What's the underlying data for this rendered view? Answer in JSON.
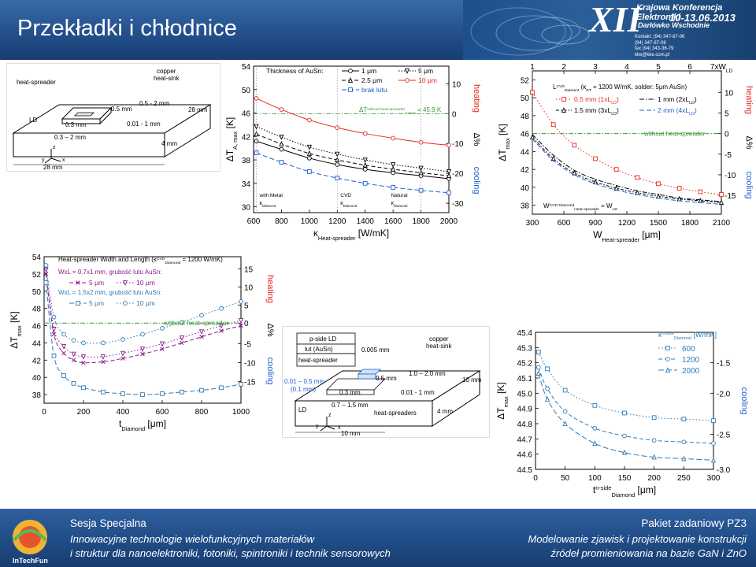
{
  "slide": {
    "title": "Przekładki i chłodnice"
  },
  "banner": {
    "roman": "XII",
    "conference": "Krajowa Konferencja Elektroniki",
    "date": "10-13.06.2013",
    "place": "Darłówko Wschodnie",
    "contact": "Kontakt: (94) 347-87-06\n(94) 347-87-08\nfax (94) 343-36-79\nkke@kke.com.pl"
  },
  "footer": {
    "left_line1": "Sesja Specjalna",
    "left_line2": "Innowacyjne technologie wielofunkcyjnych materiałów",
    "left_line3": "i struktur dla nanoelektroniki, fotoniki, spintroniki i technik sensorowych",
    "right_line1": "Pakiet zadaniowy  PZ3",
    "right_line2": "Modelowanie zjawisk i projektowanie konstrukcji",
    "right_line3": "źródeł promieniowania na bazie GaN i ZnO",
    "logo_text": "InTechFun"
  },
  "colors": {
    "black": "#000000",
    "red": "#e8281e",
    "blue": "#1f5fd0",
    "purple": "#8a1a8a",
    "teal": "#2a7ab8",
    "green": "#3a9a3a",
    "header": "#23508c"
  },
  "diagram1": {
    "labels": [
      "heat-spreader",
      "copper",
      "heat-sink",
      "LD",
      "0.5 mm",
      "0.5 - 2 mm",
      "28 mm",
      "0.3 mm",
      "0.01 - 1 mm",
      "0.3 – 2 mm",
      "4 mm",
      "28 mm",
      "x",
      "y",
      "z"
    ]
  },
  "diagram2": {
    "labels": [
      "p-side LD",
      "lut (AuSn)",
      "heat-spreader",
      "0.005 mm",
      "copper",
      "heat-sink",
      "0.01 – 0.5 mm",
      "(0.1 mm)",
      "0.3 mm",
      "0.5 mm",
      "1.0 – 2.0 mm",
      "0.01 - 1 mm",
      "10 mm",
      "LD",
      "0.7 – 1.5 mm",
      "heat-spreaders",
      "4 mm",
      "10 mm",
      "x",
      "y",
      "z"
    ]
  },
  "chart_data": [
    {
      "id": "chart1",
      "type": "line",
      "xlabel_main": "κ",
      "xlabel_sub": "Heat-spreader",
      "xlabel_unit": " [W/mK]",
      "ylabel_main": "ΔT",
      "ylabel_sub": "A, max",
      "ylabel_unit": " [K]",
      "y2label_top": "heating",
      "y2label_mid": "Δ%",
      "y2label_bot": "cooling",
      "xlim": [
        600,
        2000
      ],
      "ylim": [
        29,
        54
      ],
      "xticks": [
        "600",
        "800",
        "1000",
        "1200",
        "1400",
        "1600",
        "1800",
        "2000"
      ],
      "xtick_values": [
        600,
        800,
        1000,
        1200,
        1400,
        1600,
        1800,
        2000
      ],
      "yticks": [
        "30",
        "34",
        "38",
        "42",
        "46",
        "50",
        "54"
      ],
      "ytick_values": [
        30,
        34,
        38,
        42,
        46,
        50,
        54
      ],
      "y2_ticks": [
        "10",
        "0",
        "-10",
        "-20",
        "-30"
      ],
      "y2_tick_values": [
        51.0,
        45.9,
        40.8,
        35.7,
        30.6
      ],
      "legend_title": "Thickness of AuSn:",
      "legend": [
        "1 μm",
        "5 μm",
        "2.5 μm",
        "10 μm",
        "brak lutu"
      ],
      "reference_label_main": "ΔT",
      "reference_label_sup": "without heat-spreader",
      "reference_label_sub": "A max",
      "reference_label_value": " = 45.9 K",
      "reference_value": 45.9,
      "annotations": [
        {
          "x": 620,
          "lines": [
            "with Metal",
            "κ",
            "Diamond"
          ]
        },
        {
          "x": 1200,
          "lines": [
            "CVD",
            "κ",
            "Diamond"
          ]
        },
        {
          "x": 1800,
          "lines": [
            "Natural",
            "κ",
            "Diamond"
          ]
        }
      ],
      "markers_x": [
        620,
        800,
        1000,
        1200,
        1400,
        1600,
        1800,
        2000
      ],
      "series": [
        {
          "name": "1 μm",
          "style": "solid-circle",
          "values": [
            41.2,
            39.8,
            38.3,
            37.2,
            36.4,
            35.8,
            35.3,
            34.8
          ]
        },
        {
          "name": "5 μm",
          "style": "dot-tri-down",
          "values": [
            43.7,
            41.9,
            40.2,
            39.0,
            38.0,
            37.2,
            36.6,
            36.0
          ]
        },
        {
          "name": "2.5 μm",
          "style": "dash-tri-up",
          "values": [
            42.4,
            40.7,
            39.1,
            38.0,
            37.1,
            36.4,
            35.8,
            35.3
          ]
        },
        {
          "name": "10 μm",
          "style": "red-circle",
          "values": [
            48.5,
            46.6,
            44.8,
            43.5,
            42.5,
            41.7,
            41.0,
            40.5
          ]
        },
        {
          "name": "brak lutu",
          "style": "blue-square",
          "values": [
            39.2,
            37.6,
            36.0,
            34.9,
            34.0,
            33.3,
            32.8,
            32.4
          ]
        }
      ]
    },
    {
      "id": "chart2",
      "type": "line",
      "xlabel_main": "W",
      "xlabel_sub": "Heat-spreader",
      "xlabel_unit": " [μm]",
      "ylabel_main": "ΔT",
      "ylabel_sub": "max",
      "ylabel_unit": " [K]",
      "y2label_top": "heating",
      "y2label_mid": "Δ%",
      "y2label_bot": "cooling",
      "xlim": [
        300,
        2100
      ],
      "ylim": [
        37,
        53
      ],
      "xticks": [
        "300",
        "600",
        "900",
        "1200",
        "1500",
        "1800",
        "2100"
      ],
      "xtick_values": [
        300,
        600,
        900,
        1200,
        1500,
        1800,
        2100
      ],
      "top_ticks": [
        "1",
        "2",
        "3",
        "4",
        "5",
        "6",
        "7xW"
      ],
      "top_tick_sub": "LD",
      "yticks": [
        "38",
        "40",
        "42",
        "44",
        "46",
        "48",
        "50",
        "52"
      ],
      "ytick_values": [
        38,
        40,
        42,
        44,
        46,
        48,
        50,
        52
      ],
      "y2_ticks": [
        "10",
        "5",
        "0",
        "-5",
        "-10",
        "-15"
      ],
      "y2_tick_values": [
        50.6,
        48.3,
        46.0,
        43.7,
        41.4,
        39.1
      ],
      "reference_value": 46.0,
      "reference_label": "without heat-spreader",
      "legend_title_parts": [
        "L",
        "CVD",
        "Diament",
        "(κ",
        "RT",
        " = 1200 W/mK, solder: 5μm AuSn)"
      ],
      "legend": [
        "0.5 mm (1xL",
        "LD",
        ")",
        "1 mm (2xL",
        "LD",
        ")",
        "1.5 mm (3xL",
        "LD",
        ")",
        "2 mm (4xL",
        "LD",
        ")"
      ],
      "annotation_parts": [
        "W",
        "CVD Diamond",
        "Heat-spreader",
        " = W",
        "LD"
      ],
      "markers_x": [
        300,
        500,
        700,
        900,
        1100,
        1300,
        1500,
        1700,
        1900,
        2100
      ],
      "series": [
        {
          "name": "0.5 mm",
          "style": "red-dot-square",
          "values": [
            50.6,
            47.0,
            44.7,
            43.2,
            42.0,
            41.1,
            40.4,
            39.9,
            39.5,
            39.2
          ]
        },
        {
          "name": "1 mm",
          "style": "dashdot",
          "values": [
            45.9,
            43.6,
            41.9,
            40.9,
            40.2,
            39.6,
            39.2,
            38.8,
            38.6,
            38.4
          ]
        },
        {
          "name": "1.5 mm",
          "style": "dashdot-tri",
          "values": [
            45.6,
            43.2,
            41.6,
            40.6,
            39.9,
            39.4,
            39.0,
            38.7,
            38.5,
            38.3
          ]
        },
        {
          "name": "2 mm",
          "style": "dash-blue",
          "values": [
            45.4,
            43.0,
            41.4,
            40.4,
            39.7,
            39.2,
            38.8,
            38.5,
            38.3,
            38.1
          ]
        }
      ]
    },
    {
      "id": "chart3",
      "type": "line",
      "xlabel_main": "t",
      "xlabel_sub": "Diamond",
      "xlabel_unit": " [μm]",
      "ylabel_main": "ΔT",
      "ylabel_sub": "max",
      "ylabel_unit": " [K]",
      "y2label_top": "heating",
      "y2label_mid": "Δ%",
      "y2label_bot": "cooling",
      "xlim": [
        0,
        1000
      ],
      "ylim": [
        37,
        54
      ],
      "xticks": [
        "0",
        "200",
        "400",
        "600",
        "800",
        "1000"
      ],
      "xtick_values": [
        0,
        200,
        400,
        600,
        800,
        1000
      ],
      "yticks": [
        "38",
        "40",
        "42",
        "44",
        "46",
        "48",
        "50",
        "52",
        "54"
      ],
      "ytick_values": [
        38,
        40,
        42,
        44,
        46,
        48,
        50,
        52,
        54
      ],
      "y2_ticks": [
        "15",
        "10",
        "5",
        "0",
        "-5",
        "-10",
        "-15"
      ],
      "y2_tick_values": [
        52.6,
        50.5,
        48.4,
        46.3,
        43.9,
        41.7,
        39.5
      ],
      "reference_value": 46.3,
      "reference_label": "without heat-spreader",
      "legend_title_parts": [
        "Heat-spreader Width and Length   (κ",
        "CVD",
        "Diamond",
        " = 1200 W/mK)"
      ],
      "legend": [
        "WxL = 0.7x1 mm, grubość lutu AuSn:",
        "5 μm",
        "10 μm",
        "WxL = 1.5x2 mm, grubość lutu AuSn:",
        "5 μm",
        "10 μm"
      ],
      "series": [
        {
          "name": "0.7x1 mm, 5 μm",
          "style": "purple-dash",
          "x": [
            10,
            50,
            100,
            150,
            200,
            300,
            400,
            500,
            600,
            700,
            800,
            900,
            1000
          ],
          "values": [
            52.0,
            45.0,
            42.8,
            42.0,
            41.7,
            41.8,
            42.2,
            42.7,
            43.3,
            44.0,
            44.7,
            45.4,
            46.0
          ]
        },
        {
          "name": "0.7x1 mm, 10 μm",
          "style": "purple-dot",
          "x": [
            10,
            50,
            100,
            150,
            200,
            300,
            400,
            500,
            600,
            700,
            800,
            900,
            1000
          ],
          "values": [
            52.5,
            45.6,
            43.6,
            42.7,
            42.4,
            42.4,
            42.8,
            43.3,
            43.9,
            44.6,
            45.3,
            46.0,
            46.6
          ]
        },
        {
          "name": "1.5x2 mm, 5 μm",
          "style": "teal-dash",
          "x": [
            10,
            50,
            100,
            150,
            200,
            300,
            400,
            500,
            600,
            700,
            800,
            900,
            1000
          ],
          "values": [
            51.0,
            42.5,
            40.2,
            39.3,
            38.8,
            38.3,
            38.1,
            38.0,
            38.1,
            38.3,
            38.5,
            38.8,
            39.2
          ]
        },
        {
          "name": "1.5x2 mm, 10 μm",
          "style": "teal-dot",
          "x": [
            10,
            50,
            100,
            150,
            200,
            300,
            400,
            500,
            600,
            700,
            800,
            900,
            1000
          ],
          "values": [
            53.0,
            47.0,
            45.0,
            44.3,
            44.0,
            44.0,
            44.4,
            45.0,
            45.7,
            46.4,
            47.2,
            48.0,
            48.8
          ]
        }
      ]
    },
    {
      "id": "chart4",
      "type": "line",
      "xlabel_main": "t",
      "xlabel_sup": "n-side",
      "xlabel_sub": "Diamond",
      "xlabel_unit": " [μm]",
      "ylabel_main": "ΔT",
      "ylabel_sub": "max",
      "ylabel_unit": " [K]",
      "y2label_bot": "cooling",
      "xlim": [
        0,
        300
      ],
      "ylim": [
        44.5,
        45.4
      ],
      "xticks": [
        "0",
        "50",
        "100",
        "150",
        "200",
        "250",
        "300"
      ],
      "xtick_values": [
        0,
        50,
        100,
        150,
        200,
        250,
        300
      ],
      "yticks": [
        "44.5",
        "44.6",
        "44.7",
        "44.8",
        "44.9",
        "45.0",
        "45.1",
        "45.2",
        "45.3",
        "45.4"
      ],
      "ytick_values": [
        44.5,
        44.6,
        44.7,
        44.8,
        44.9,
        45.0,
        45.1,
        45.2,
        45.3,
        45.4
      ],
      "y2_ticks": [
        "-1.5",
        "-2.0",
        "-2.5",
        "-3.0"
      ],
      "y2_tick_values": [
        45.2,
        45.0,
        44.73,
        44.5
      ],
      "legend_title_parts": [
        "κ",
        "n-side",
        "Diamond",
        " [W/mK]"
      ],
      "legend": [
        "600",
        "1200",
        "2000"
      ],
      "series": [
        {
          "name": "600",
          "style": "dot-square",
          "x": [
            5,
            20,
            50,
            100,
            150,
            200,
            250,
            300
          ],
          "values": [
            45.27,
            45.16,
            45.02,
            44.92,
            44.87,
            44.84,
            44.83,
            44.82
          ]
        },
        {
          "name": "1200",
          "style": "dash-circle",
          "x": [
            5,
            20,
            50,
            100,
            150,
            200,
            250,
            300
          ],
          "values": [
            45.17,
            45.03,
            44.88,
            44.77,
            44.72,
            44.69,
            44.68,
            44.67
          ]
        },
        {
          "name": "2000",
          "style": "dash-tri",
          "x": [
            5,
            20,
            50,
            100,
            150,
            200,
            250,
            300
          ],
          "values": [
            45.13,
            44.96,
            44.8,
            44.67,
            44.61,
            44.58,
            44.57,
            44.56
          ]
        }
      ]
    }
  ]
}
